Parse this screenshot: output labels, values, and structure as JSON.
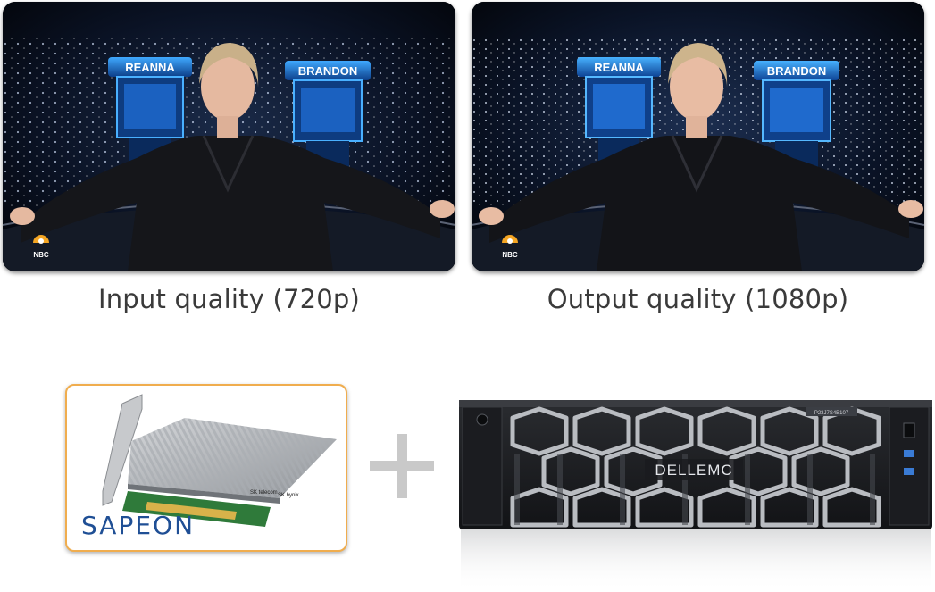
{
  "comparison": {
    "left": {
      "caption": "Input quality (720p)",
      "podium_left": "REANNA",
      "podium_right": "BRANDON",
      "network_logo": "NBC"
    },
    "right": {
      "caption": "Output quality (1080p)",
      "podium_left": "REANNA",
      "podium_right": "BRANDON",
      "network_logo": "NBC"
    }
  },
  "hardware": {
    "card_brand": "SAPEON",
    "card_chip_labels": [
      "SK telecom",
      "SK hynix"
    ],
    "plus_icon": "plus-icon",
    "server_brand": "DELLEMC",
    "server_tag": "P23J7S4B107"
  },
  "colors": {
    "card_border": "#f0ad4e",
    "sapeon_blue": "#1f4f95",
    "podium_blue": "#2a8fe0"
  }
}
